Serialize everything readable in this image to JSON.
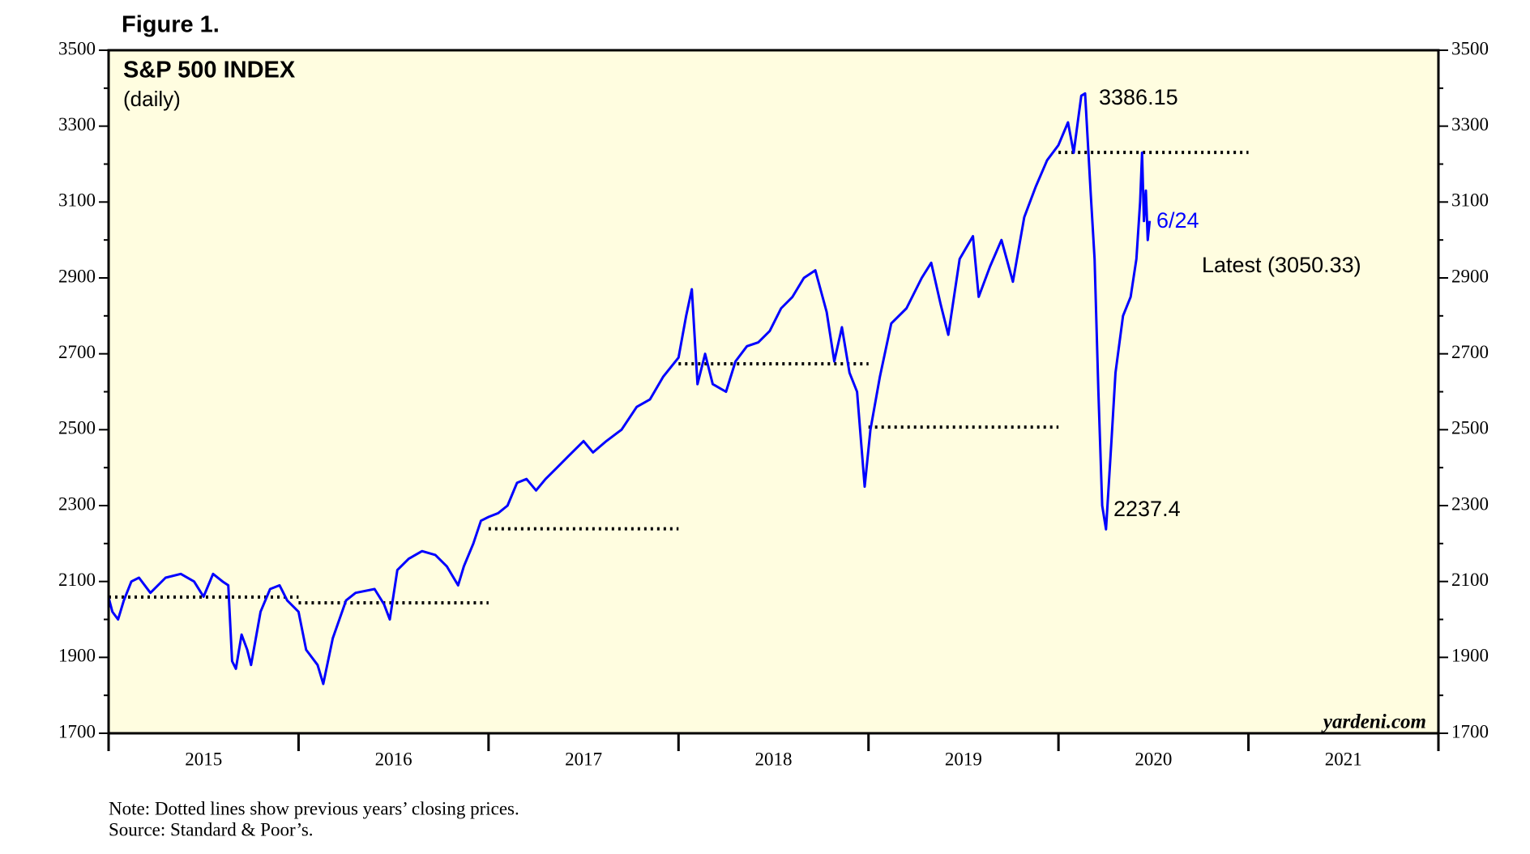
{
  "chart_data": {
    "type": "line",
    "figure_label": "Figure 1.",
    "title": "S&P 500 INDEX",
    "subtitle": "(daily)",
    "source_brand": "yardeni.com",
    "notes": [
      "Note: Dotted lines show previous years’ closing prices.",
      "Source: Standard & Poor’s."
    ],
    "categories": [
      "2015",
      "2016",
      "2017",
      "2018",
      "2019",
      "2020",
      "2021"
    ],
    "xlim": [
      2015,
      2022
    ],
    "xticks": [
      2015,
      2016,
      2017,
      2018,
      2019,
      2020,
      2021,
      2022
    ],
    "ylim": [
      1700,
      3500
    ],
    "yticks": [
      1700,
      1900,
      2100,
      2300,
      2500,
      2700,
      2900,
      3100,
      3300,
      3500
    ],
    "yminor": [
      1800,
      2000,
      2200,
      2400,
      2600,
      2800,
      3000,
      3200,
      3400
    ],
    "background": "#fffde0",
    "series": [
      {
        "color": "#0000ff",
        "x": [
          2015.0,
          2015.02,
          2015.05,
          2015.08,
          2015.12,
          2015.16,
          2015.22,
          2015.3,
          2015.38,
          2015.45,
          2015.5,
          2015.55,
          2015.6,
          2015.63,
          2015.65,
          2015.67,
          2015.7,
          2015.73,
          2015.75,
          2015.8,
          2015.85,
          2015.9,
          2015.94,
          2016.0,
          2016.04,
          2016.1,
          2016.13,
          2016.18,
          2016.25,
          2016.3,
          2016.4,
          2016.45,
          2016.48,
          2016.52,
          2016.58,
          2016.65,
          2016.72,
          2016.78,
          2016.84,
          2016.87,
          2016.92,
          2016.96,
          2017.0,
          2017.05,
          2017.1,
          2017.15,
          2017.2,
          2017.25,
          2017.3,
          2017.36,
          2017.42,
          2017.5,
          2017.55,
          2017.62,
          2017.7,
          2017.78,
          2017.85,
          2017.92,
          2018.0,
          2018.04,
          2018.07,
          2018.1,
          2018.14,
          2018.18,
          2018.25,
          2018.3,
          2018.36,
          2018.42,
          2018.48,
          2018.54,
          2018.6,
          2018.66,
          2018.72,
          2018.78,
          2018.82,
          2018.86,
          2018.9,
          2018.94,
          2018.98,
          2019.01,
          2019.06,
          2019.12,
          2019.2,
          2019.28,
          2019.33,
          2019.38,
          2019.42,
          2019.48,
          2019.55,
          2019.58,
          2019.64,
          2019.7,
          2019.76,
          2019.82,
          2019.88,
          2019.94,
          2020.0,
          2020.05,
          2020.08,
          2020.12,
          2020.14,
          2020.17,
          2020.19,
          2020.21,
          2020.23,
          2020.25,
          2020.28,
          2020.3,
          2020.34,
          2020.38,
          2020.41,
          2020.43,
          2020.44,
          2020.45,
          2020.46,
          2020.47,
          2020.48
        ],
        "values": [
          2058,
          2020,
          2000,
          2050,
          2100,
          2110,
          2070,
          2110,
          2120,
          2100,
          2060,
          2120,
          2100,
          2090,
          1890,
          1870,
          1960,
          1920,
          1880,
          2020,
          2080,
          2090,
          2050,
          2020,
          1920,
          1880,
          1830,
          1950,
          2050,
          2070,
          2080,
          2040,
          2000,
          2130,
          2160,
          2180,
          2170,
          2140,
          2090,
          2140,
          2200,
          2260,
          2270,
          2280,
          2300,
          2360,
          2370,
          2340,
          2370,
          2400,
          2430,
          2470,
          2440,
          2470,
          2500,
          2560,
          2580,
          2640,
          2690,
          2800,
          2870,
          2620,
          2700,
          2620,
          2600,
          2680,
          2720,
          2730,
          2760,
          2820,
          2850,
          2900,
          2920,
          2810,
          2680,
          2770,
          2650,
          2600,
          2350,
          2500,
          2640,
          2780,
          2820,
          2900,
          2940,
          2830,
          2750,
          2950,
          3010,
          2850,
          2930,
          3000,
          2890,
          3060,
          3140,
          3210,
          3250,
          3310,
          3230,
          3380,
          3386.15,
          3120,
          2950,
          2600,
          2300,
          2237.4,
          2480,
          2650,
          2800,
          2850,
          2950,
          3100,
          3230,
          3050,
          3130,
          3000,
          3050.33
        ]
      }
    ],
    "reference_lines": [
      {
        "value": 2058.9,
        "x": [
          2015,
          2016
        ]
      },
      {
        "value": 2043.9,
        "x": [
          2016,
          2017
        ]
      },
      {
        "value": 2238.8,
        "x": [
          2017,
          2018
        ]
      },
      {
        "value": 2673.6,
        "x": [
          2018,
          2019
        ]
      },
      {
        "value": 2506.9,
        "x": [
          2019,
          2020
        ]
      },
      {
        "value": 3230.8,
        "x": [
          2020,
          2021
        ]
      }
    ],
    "annotations": [
      {
        "text": "3386.15",
        "value": 3386.15
      },
      {
        "text": "2237.4",
        "value": 2237.4
      },
      {
        "text": "6/24"
      },
      {
        "text": "Latest (3050.33)",
        "value": 3050.33
      }
    ]
  }
}
